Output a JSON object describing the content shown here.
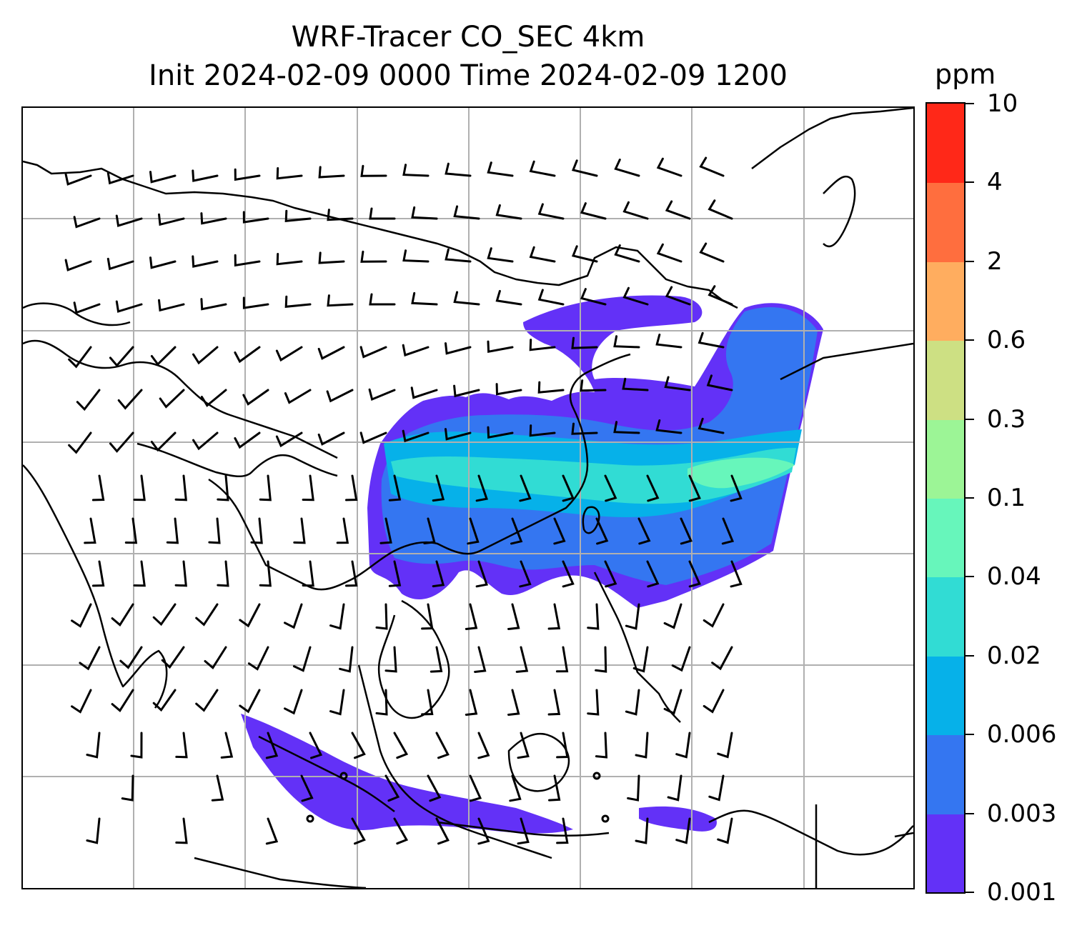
{
  "title": {
    "line1": "WRF-Tracer CO_SEC 4km",
    "line2": "Init 2024-02-09 0000 Time 2024-02-09 1200"
  },
  "colorbar": {
    "units": "ppm",
    "labels": [
      "0.001",
      "0.003",
      "0.006",
      "0.02",
      "0.04",
      "0.1",
      "0.3",
      "0.6",
      "2",
      "4",
      "10"
    ],
    "colors": [
      "#6331f7",
      "#3476f1",
      "#06b1e9",
      "#31dcd4",
      "#67f6bb",
      "#9cf596",
      "#cde083",
      "#ffad5f",
      "#ff6e3e",
      "#ff2818"
    ]
  },
  "map": {
    "gridlines": true,
    "coastline_color": "#000000",
    "grid_color": "#b0b0b0"
  }
}
